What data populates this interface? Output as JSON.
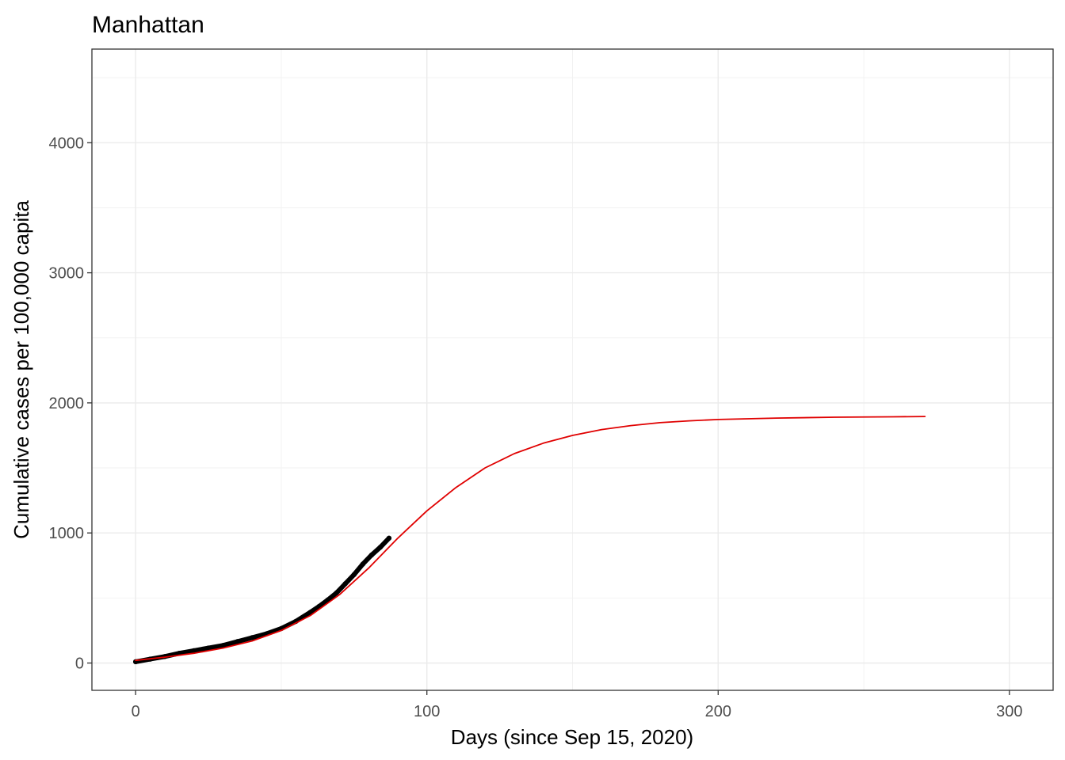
{
  "chart_data": {
    "type": "line",
    "title": "Manhattan",
    "xlabel": "Days (since Sep 15, 2020)",
    "ylabel": "Cumulative cases per 100,000 capita",
    "xlim": [
      -15,
      315
    ],
    "ylim": [
      -210,
      4720
    ],
    "x_ticks": [
      0,
      100,
      200,
      300
    ],
    "y_ticks": [
      0,
      1000,
      2000,
      3000,
      4000
    ],
    "x_tick_labels": [
      "0",
      "100",
      "200",
      "300"
    ],
    "y_tick_labels": [
      "0",
      "1000",
      "2000",
      "3000",
      "4000"
    ],
    "grid": true,
    "legend": "none",
    "series": [
      {
        "kind": "observed",
        "color": "#000000",
        "x": [
          0,
          5,
          10,
          15,
          20,
          25,
          30,
          35,
          40,
          45,
          50,
          55,
          60,
          63,
          66,
          69,
          72,
          75,
          78,
          81,
          84,
          87
        ],
        "y": [
          10,
          30,
          50,
          75,
          95,
          115,
          135,
          165,
          195,
          225,
          265,
          320,
          390,
          435,
          485,
          540,
          610,
          680,
          760,
          830,
          890,
          960
        ]
      },
      {
        "kind": "fitted",
        "color": "#e00000",
        "x": [
          0,
          10,
          20,
          30,
          40,
          50,
          60,
          70,
          80,
          90,
          100,
          110,
          120,
          130,
          140,
          150,
          160,
          170,
          180,
          190,
          200,
          220,
          240,
          260,
          271
        ],
        "y": [
          20,
          45,
          75,
          115,
          170,
          250,
          365,
          525,
          730,
          960,
          1170,
          1350,
          1500,
          1610,
          1690,
          1750,
          1795,
          1825,
          1848,
          1862,
          1872,
          1883,
          1890,
          1893,
          1895
        ]
      }
    ]
  }
}
